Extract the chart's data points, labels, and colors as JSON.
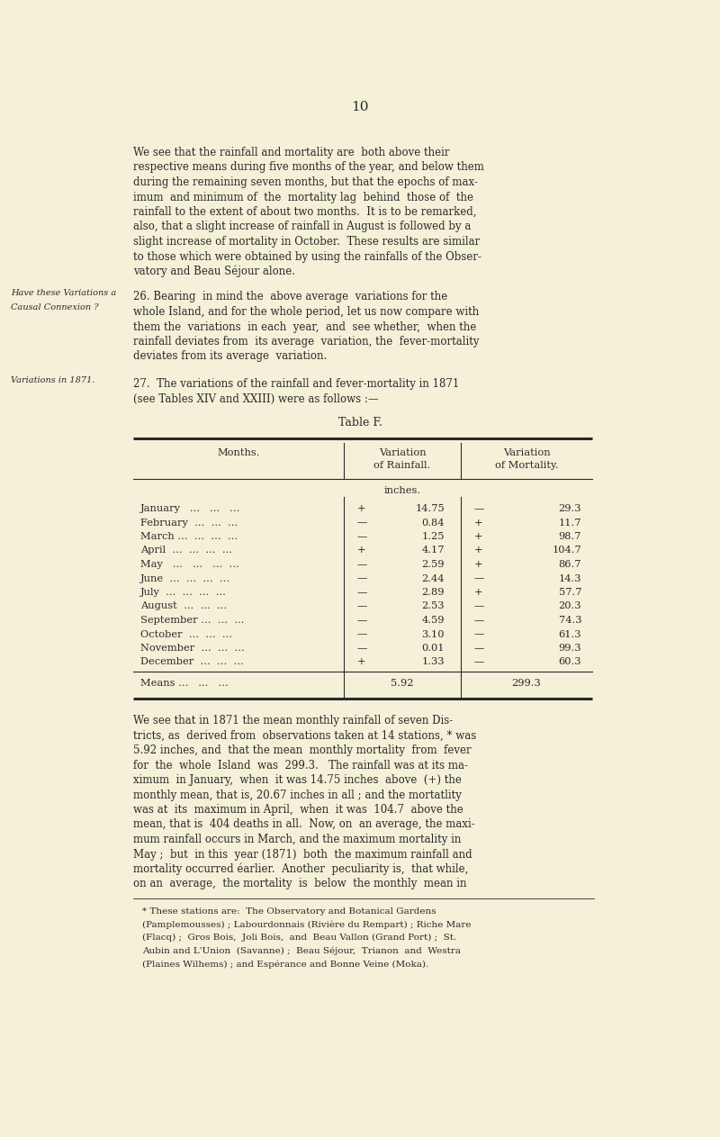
{
  "page_number": "10",
  "bg_color": "#f5f0d8",
  "text_color": "#2a2a2a",
  "page_width": 8.0,
  "page_height": 12.63,
  "dpi": 100,
  "side_label1a": "Have these Variations a",
  "side_label1b": "Causal Connexion ?",
  "side_label2": "Variations in 1871.",
  "table_title": "Table F.",
  "table_rows": [
    {
      "month": "January   ...   ...   ...",
      "rain_sign": "+",
      "rain_val": "14.75",
      "mort_sign": "—",
      "mort_val": "29.3"
    },
    {
      "month": "February  ...  ...  ...",
      "rain_sign": "—",
      "rain_val": "0.84",
      "mort_sign": "+",
      "mort_val": "11.7"
    },
    {
      "month": "March ...  ...  ...  ...",
      "rain_sign": "—",
      "rain_val": "1.25",
      "mort_sign": "+",
      "mort_val": "98.7"
    },
    {
      "month": "April  ...  ...  ...  ...",
      "rain_sign": "+",
      "rain_val": "4.17",
      "mort_sign": "+",
      "mort_val": "104.7"
    },
    {
      "month": "May   ...   ...   ...  ...",
      "rain_sign": "—",
      "rain_val": "2.59",
      "mort_sign": "+",
      "mort_val": "86.7"
    },
    {
      "month": "June  ...  ...  ...  ...",
      "rain_sign": "—",
      "rain_val": "2.44",
      "mort_sign": "—",
      "mort_val": "14.3"
    },
    {
      "month": "July  ...  ...  ...  ...",
      "rain_sign": "—",
      "rain_val": "2.89",
      "mort_sign": "+",
      "mort_val": "57.7"
    },
    {
      "month": "August  ...  ...  ...",
      "rain_sign": "—",
      "rain_val": "2.53",
      "mort_sign": "—",
      "mort_val": "20.3"
    },
    {
      "month": "September ...  ...  ...",
      "rain_sign": "—",
      "rain_val": "4.59",
      "mort_sign": "—",
      "mort_val": "74.3"
    },
    {
      "month": "October  ...  ...  ...",
      "rain_sign": "—",
      "rain_val": "3.10",
      "mort_sign": "—",
      "mort_val": "61.3"
    },
    {
      "month": "November  ...  ...  ...",
      "rain_sign": "—",
      "rain_val": "0.01",
      "mort_sign": "—",
      "mort_val": "99.3"
    },
    {
      "month": "December  ...  ...  ...",
      "rain_sign": "+",
      "rain_val": "1.33",
      "mort_sign": "—",
      "mort_val": "60.3"
    }
  ],
  "table_means_label": "Means ...   ...   ...",
  "table_means_rain": "5.92",
  "table_means_mort": "299.3"
}
